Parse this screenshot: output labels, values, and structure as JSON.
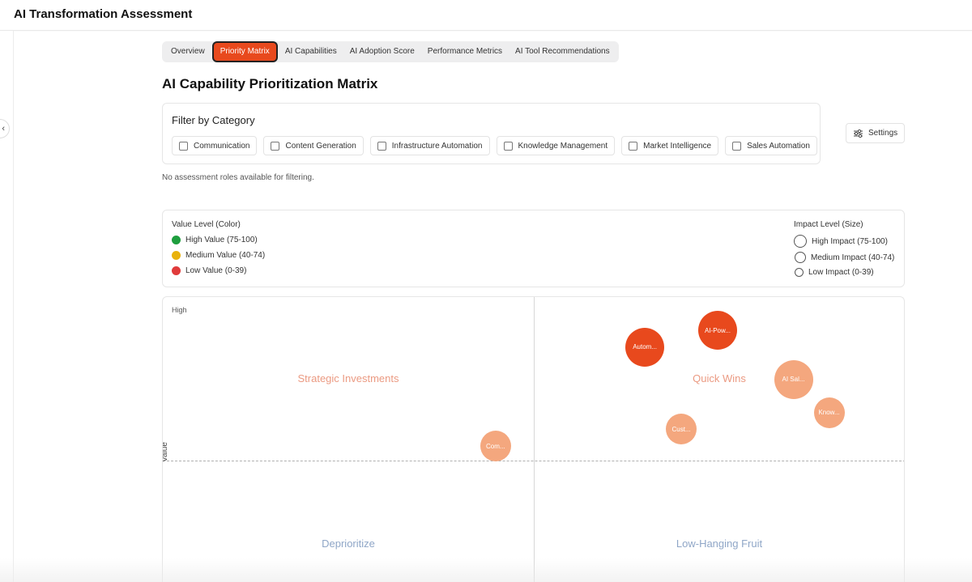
{
  "app": {
    "title": "AI Transformation Assessment"
  },
  "tabs": [
    {
      "label": "Overview",
      "active": false
    },
    {
      "label": "Priority Matrix",
      "active": true
    },
    {
      "label": "AI Capabilities",
      "active": false
    },
    {
      "label": "AI Adoption Score",
      "active": false
    },
    {
      "label": "Performance Metrics",
      "active": false
    },
    {
      "label": "AI Tool Recommendations",
      "active": false
    }
  ],
  "page": {
    "heading": "AI Capability Prioritization Matrix"
  },
  "filter": {
    "title": "Filter by Category",
    "categories": [
      {
        "label": "Communication",
        "checked": false
      },
      {
        "label": "Content Generation",
        "checked": false
      },
      {
        "label": "Infrastructure Automation",
        "checked": false
      },
      {
        "label": "Knowledge Management",
        "checked": false
      },
      {
        "label": "Market Intelligence",
        "checked": false
      },
      {
        "label": "Sales Automation",
        "checked": false
      }
    ],
    "no_roles_text": "No assessment roles available for filtering."
  },
  "settings": {
    "label": "Settings",
    "icon": "sliders-icon"
  },
  "legend": {
    "value_title": "Value Level (Color)",
    "value_items": [
      {
        "label": "High Value (75-100)",
        "color": "#1e9e3e"
      },
      {
        "label": "Medium Value (40-74)",
        "color": "#e9b20c"
      },
      {
        "label": "Low Value (0-39)",
        "color": "#e03b3b"
      }
    ],
    "impact_title": "Impact Level (Size)",
    "impact_items": [
      {
        "label": "High Impact (75-100)"
      },
      {
        "label": "Medium Impact (40-74)"
      },
      {
        "label": "Low Impact (0-39)"
      }
    ]
  },
  "matrix": {
    "y_high_label": "High",
    "y_axis_label": "Value",
    "quadrants": {
      "strategic": "Strategic Investments",
      "quick_wins": "Quick Wins",
      "deprioritize": "Deprioritize",
      "low_hanging": "Low-Hanging Fruit"
    },
    "colors": {
      "strong": "#e8491d",
      "soft": "#f4a77e"
    },
    "bubbles": [
      {
        "label": "AI-Pow...",
        "fx": 0.747,
        "fy": 0.203,
        "impact": "high",
        "tone": "strong"
      },
      {
        "label": "Autom...",
        "fx": 0.649,
        "fy": 0.306,
        "impact": "high",
        "tone": "strong"
      },
      {
        "label": "AI Sal...",
        "fx": 0.849,
        "fy": 0.503,
        "impact": "high",
        "tone": "soft"
      },
      {
        "label": "Know...",
        "fx": 0.897,
        "fy": 0.706,
        "impact": "medium",
        "tone": "soft"
      },
      {
        "label": "Cust...",
        "fx": 0.698,
        "fy": 0.809,
        "impact": "medium",
        "tone": "soft"
      },
      {
        "label": "Com...",
        "fx": 0.448,
        "fy": 0.912,
        "impact": "medium",
        "tone": "soft"
      }
    ]
  }
}
